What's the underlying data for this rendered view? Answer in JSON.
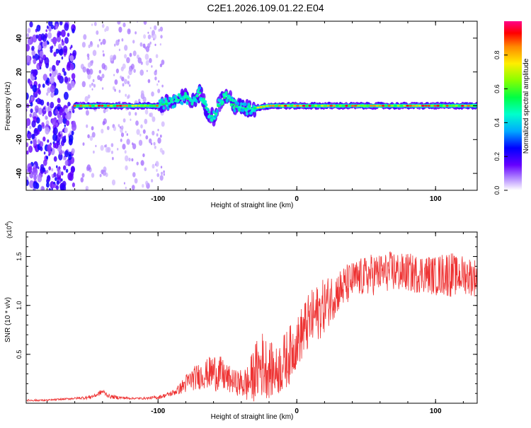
{
  "title": "C2E1.2026.109.01.22.E04",
  "chart_data": [
    {
      "type": "heatmap",
      "xlabel": "Height of straight line (km)",
      "ylabel": "Frequency (Hz)",
      "xlim": [
        -195,
        130
      ],
      "ylim": [
        -50,
        50
      ],
      "xticks": [
        -100,
        0,
        100
      ],
      "yticks": [
        -40,
        -20,
        0,
        20,
        40
      ],
      "xtick_labels": [
        "-100",
        "0",
        "100"
      ],
      "ytick_labels": [
        "-40",
        "-20",
        "0",
        "20",
        "40"
      ],
      "colorbar": {
        "label": "Normalized spectral amplitude",
        "range": [
          0,
          1
        ],
        "ticks": [
          0.0,
          0.2,
          0.4,
          0.6,
          0.8
        ],
        "tick_labels": [
          "0.0",
          "0.2",
          "0.4",
          "0.6",
          "0.8"
        ]
      },
      "ridge": [
        {
          "x": -160,
          "y": 0
        },
        {
          "x": -120,
          "y": 0
        },
        {
          "x": -100,
          "y": 0
        },
        {
          "x": -90,
          "y": 2
        },
        {
          "x": -80,
          "y": 5
        },
        {
          "x": -75,
          "y": 2
        },
        {
          "x": -70,
          "y": 8
        },
        {
          "x": -65,
          "y": -2
        },
        {
          "x": -60,
          "y": -7
        },
        {
          "x": -55,
          "y": 3
        },
        {
          "x": -50,
          "y": 6
        },
        {
          "x": -45,
          "y": 0
        },
        {
          "x": -35,
          "y": -2
        },
        {
          "x": -20,
          "y": 0
        },
        {
          "x": 0,
          "y": 0
        },
        {
          "x": 50,
          "y": 0
        },
        {
          "x": 100,
          "y": 0
        },
        {
          "x": 130,
          "y": 0
        }
      ],
      "noise_region_km": [
        -195,
        -160
      ]
    },
    {
      "type": "line",
      "xlabel": "Height of straight line (km)",
      "ylabel": "SNR (10 * v/v)",
      "scale_label": "(x10",
      "scale_exp": "4",
      "scale_close": ")",
      "xlim": [
        -195,
        130
      ],
      "ylim": [
        0,
        1.75
      ],
      "xticks": [
        -100,
        0,
        100
      ],
      "yticks": [
        0.5,
        1.0,
        1.5
      ],
      "xtick_labels": [
        "-100",
        "0",
        "100"
      ],
      "ytick_labels": [
        "0.5",
        "1.0",
        "1.5"
      ],
      "series": [
        {
          "name": "SNR",
          "color": "#ee3333",
          "x": [
            -195,
            -180,
            -170,
            -160,
            -150,
            -145,
            -140,
            -135,
            -130,
            -120,
            -110,
            -100,
            -95,
            -90,
            -85,
            -80,
            -75,
            -70,
            -65,
            -60,
            -55,
            -50,
            -45,
            -40,
            -35,
            -30,
            -25,
            -20,
            -15,
            -10,
            -5,
            0,
            5,
            10,
            15,
            20,
            25,
            30,
            35,
            40,
            45,
            50,
            55,
            60,
            65,
            70,
            75,
            80,
            85,
            90,
            95,
            100,
            105,
            110,
            115,
            120,
            125,
            130
          ],
          "mean": [
            0.03,
            0.03,
            0.04,
            0.05,
            0.06,
            0.08,
            0.12,
            0.07,
            0.06,
            0.05,
            0.05,
            0.06,
            0.08,
            0.1,
            0.14,
            0.2,
            0.25,
            0.28,
            0.3,
            0.32,
            0.3,
            0.25,
            0.22,
            0.2,
            0.2,
            0.32,
            0.4,
            0.35,
            0.32,
            0.4,
            0.5,
            0.62,
            0.75,
            0.85,
            0.92,
            1.0,
            1.08,
            1.15,
            1.2,
            1.25,
            1.28,
            1.3,
            1.32,
            1.33,
            1.34,
            1.35,
            1.33,
            1.34,
            1.32,
            1.33,
            1.32,
            1.3,
            1.32,
            1.33,
            1.3,
            1.32,
            1.3,
            1.28
          ],
          "spread": [
            0.01,
            0.01,
            0.01,
            0.01,
            0.02,
            0.02,
            0.03,
            0.02,
            0.02,
            0.01,
            0.01,
            0.02,
            0.02,
            0.03,
            0.05,
            0.1,
            0.12,
            0.14,
            0.15,
            0.2,
            0.18,
            0.15,
            0.12,
            0.15,
            0.2,
            0.3,
            0.35,
            0.3,
            0.25,
            0.3,
            0.3,
            0.25,
            0.3,
            0.3,
            0.3,
            0.28,
            0.25,
            0.22,
            0.22,
            0.2,
            0.2,
            0.2,
            0.22,
            0.2,
            0.2,
            0.22,
            0.2,
            0.2,
            0.2,
            0.2,
            0.2,
            0.2,
            0.22,
            0.25,
            0.2,
            0.2,
            0.2,
            0.2
          ]
        }
      ]
    }
  ]
}
